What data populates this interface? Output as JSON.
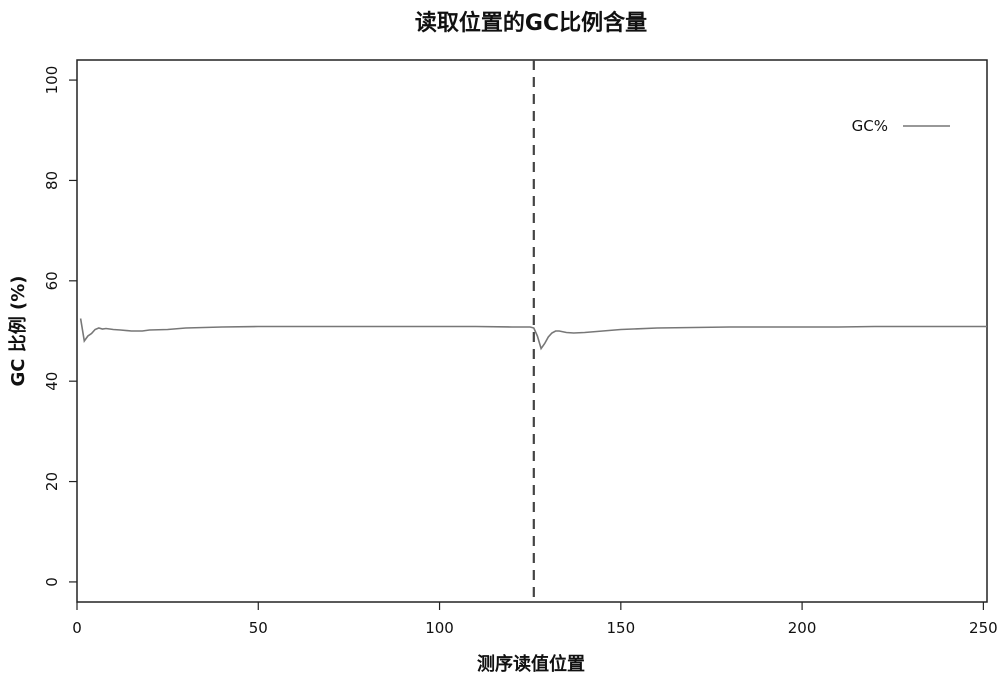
{
  "chart_data": {
    "type": "line",
    "title": "读取位置的GC比例含量",
    "xlabel": "测序读值位置",
    "ylabel": "GC 比例 (%)",
    "xlim": [
      0,
      251
    ],
    "ylim": [
      -4,
      104
    ],
    "x_ticks": [
      0,
      50,
      100,
      150,
      200,
      250
    ],
    "y_ticks": [
      0,
      20,
      40,
      60,
      80,
      100
    ],
    "grid": false,
    "legend": {
      "position": "top-right",
      "entries": [
        "GC%"
      ]
    },
    "colors": {
      "line": "#777777",
      "vline": "#444444",
      "axis": "#222222"
    },
    "vertical_line": {
      "x": 126,
      "style": "dashed"
    },
    "series": [
      {
        "name": "GC%",
        "x": [
          1,
          2,
          3,
          4,
          5,
          6,
          7,
          8,
          10,
          12,
          15,
          18,
          20,
          25,
          30,
          40,
          50,
          60,
          70,
          80,
          90,
          100,
          110,
          120,
          125,
          126,
          127,
          128,
          129,
          130,
          131,
          132,
          133,
          135,
          137,
          140,
          145,
          150,
          160,
          170,
          180,
          190,
          200,
          210,
          220,
          230,
          240,
          251
        ],
        "y": [
          52.5,
          48.0,
          49.0,
          49.5,
          50.3,
          50.6,
          50.4,
          50.5,
          50.3,
          50.2,
          50.0,
          50.0,
          50.2,
          50.3,
          50.6,
          50.8,
          50.9,
          50.9,
          50.9,
          50.9,
          50.9,
          50.9,
          50.9,
          50.8,
          50.8,
          50.6,
          49.0,
          46.5,
          47.5,
          48.8,
          49.6,
          50.0,
          50.0,
          49.7,
          49.6,
          49.7,
          50.0,
          50.3,
          50.6,
          50.7,
          50.8,
          50.8,
          50.8,
          50.8,
          50.9,
          50.9,
          50.9,
          50.9
        ]
      }
    ]
  }
}
